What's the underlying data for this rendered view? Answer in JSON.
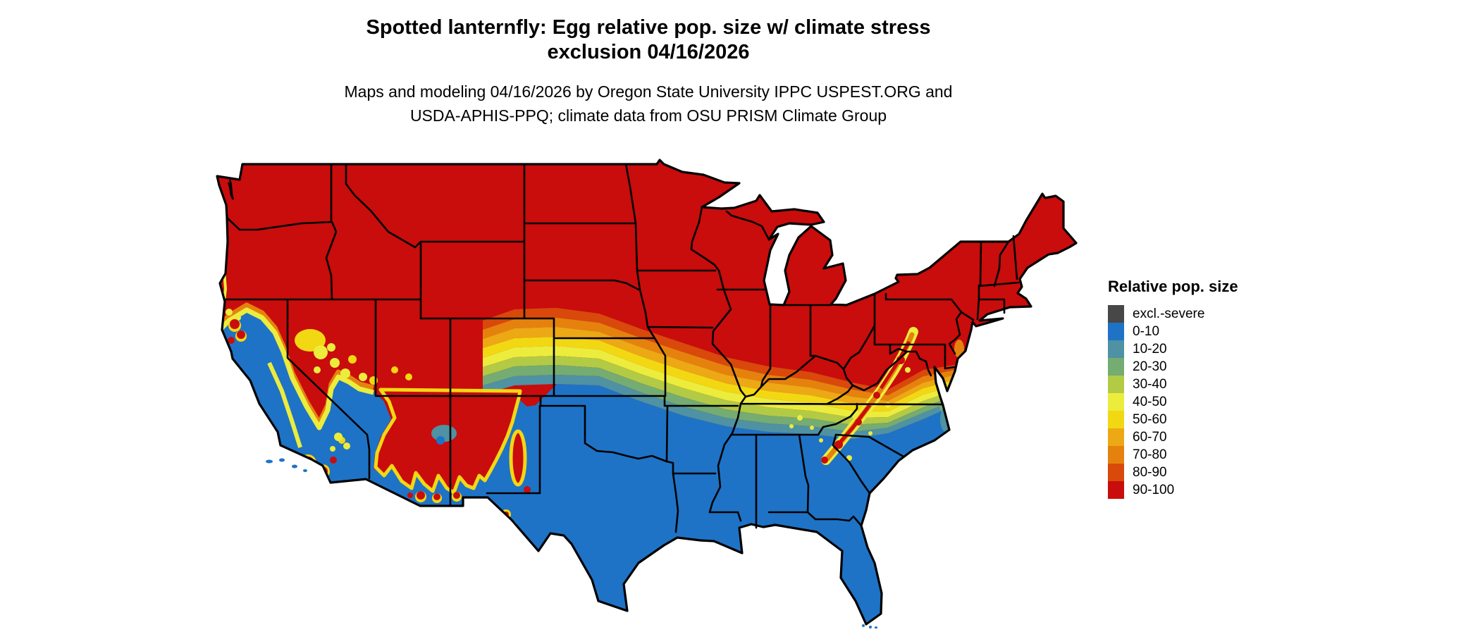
{
  "title": {
    "line1": "Spotted lanternfly: Egg relative pop. size w/ climate stress",
    "line2": "exclusion 04/16/2026"
  },
  "subtitle": {
    "line1": "Maps and modeling 04/16/2026 by Oregon State University IPPC USPEST.ORG and",
    "line2": "USDA-APHIS-PPQ; climate data from OSU PRISM Climate Group"
  },
  "legend": {
    "title": "Relative pop. size",
    "items": [
      {
        "label": "excl.-severe",
        "color": "#474747"
      },
      {
        "label": "0-10",
        "color": "#1e73c6"
      },
      {
        "label": "10-20",
        "color": "#4e92a3"
      },
      {
        "label": "20-30",
        "color": "#74ac71"
      },
      {
        "label": "30-40",
        "color": "#b3ca45"
      },
      {
        "label": "40-50",
        "color": "#ecec3d"
      },
      {
        "label": "50-60",
        "color": "#f2d813"
      },
      {
        "label": "60-70",
        "color": "#eca815"
      },
      {
        "label": "70-80",
        "color": "#e5820e"
      },
      {
        "label": "80-90",
        "color": "#d8490b"
      },
      {
        "label": "90-100",
        "color": "#c90c0c"
      }
    ]
  },
  "map": {
    "region": "Contiguous United States",
    "kind": "raster choropleth of modeled relative population size",
    "border_color": "#000000",
    "water_color": "#ffffff"
  }
}
